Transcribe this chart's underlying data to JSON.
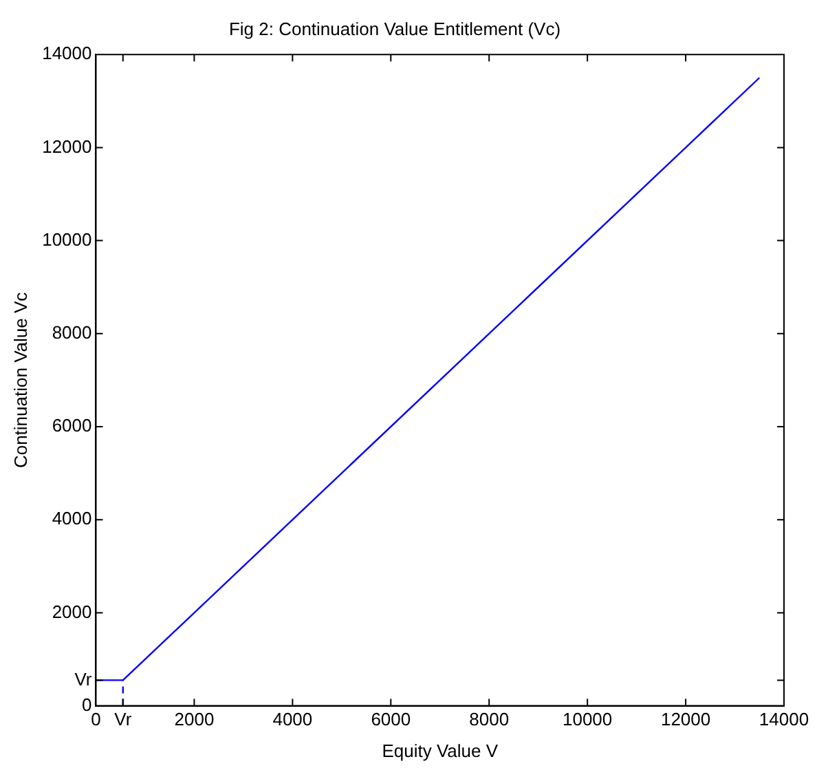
{
  "chart_data": {
    "type": "line",
    "title": "Fig 2: Continuation Value Entitlement (Vc)",
    "xlabel": "Equity Value V",
    "ylabel": "Continuation Value Vc",
    "xlim": [
      0,
      14000
    ],
    "ylim": [
      0,
      14000
    ],
    "xticks": [
      0,
      {
        "value": 550,
        "label": "Vr"
      },
      2000,
      4000,
      6000,
      8000,
      10000,
      12000,
      14000
    ],
    "yticks": [
      0,
      {
        "value": 550,
        "label": "Vr"
      },
      2000,
      4000,
      6000,
      8000,
      10000,
      12000,
      14000
    ],
    "grid": false,
    "legend": false,
    "marker": "none",
    "series": [
      {
        "color": "#0000ff",
        "x": [
          0,
          550,
          13500
        ],
        "values": [
          550,
          550,
          13500
        ],
        "line_style": "solid"
      },
      {
        "color": "#0000ff",
        "x": [
          550,
          550
        ],
        "values": [
          0,
          550
        ],
        "line_style": "dashed"
      }
    ]
  }
}
